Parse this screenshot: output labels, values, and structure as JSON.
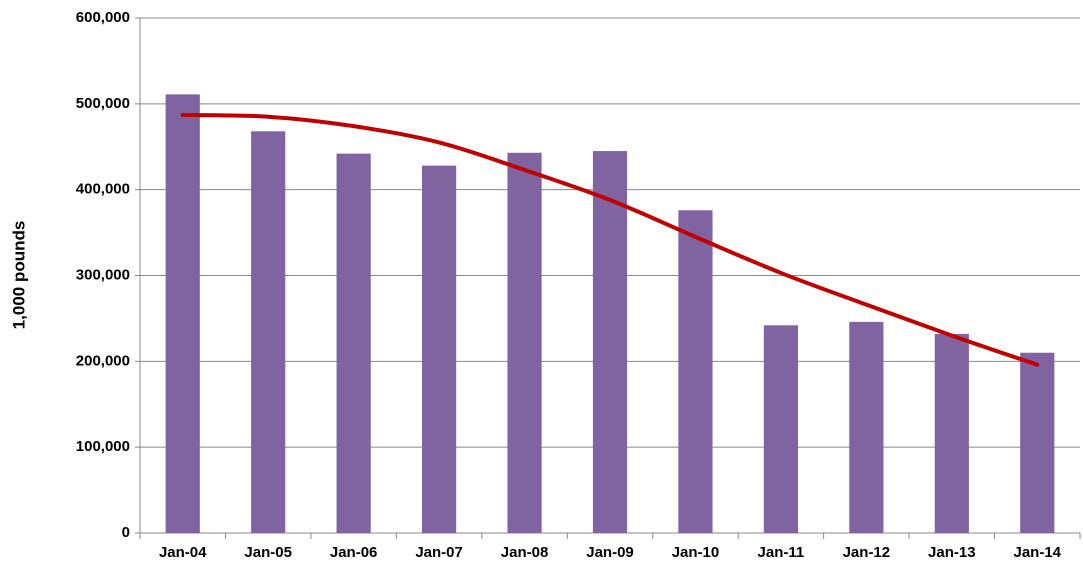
{
  "chart_data": {
    "type": "bar",
    "y_label": "1,000 pounds",
    "categories": [
      "Jan-04",
      "Jan-05",
      "Jan-06",
      "Jan-07",
      "Jan-08",
      "Jan-09",
      "Jan-10",
      "Jan-11",
      "Jan-12",
      "Jan-13",
      "Jan-14"
    ],
    "series": [
      {
        "type": "bar",
        "color": "#8064a2",
        "values": [
          511000,
          468000,
          442000,
          428000,
          443000,
          445000,
          376000,
          242000,
          246000,
          232000,
          210000
        ]
      },
      {
        "type": "line",
        "color": "#c00000",
        "values": [
          487000,
          485000,
          474000,
          455000,
          423000,
          388000,
          345000,
          303000,
          266000,
          230000,
          196000
        ]
      }
    ],
    "ylim": [
      0,
      600000
    ],
    "yticks": [
      0,
      {
        "value": 100000,
        "label": "100,000"
      },
      {
        "value": 200000,
        "label": "200,000"
      },
      {
        "value": 300000,
        "label": "300,000"
      },
      {
        "value": 400000,
        "label": "400,000"
      },
      {
        "value": 500000,
        "label": "500,000"
      },
      {
        "value": 600000,
        "label": "600,000"
      }
    ],
    "grid": true
  }
}
